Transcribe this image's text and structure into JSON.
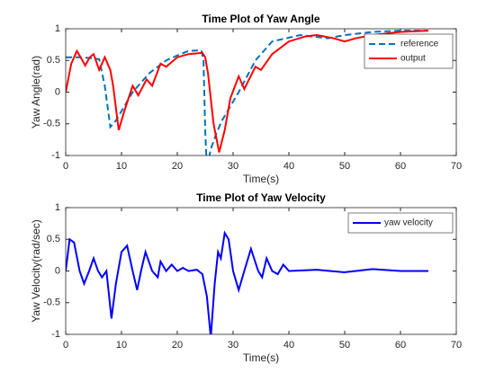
{
  "chart_data": [
    {
      "type": "line",
      "title": "Time Plot of Yaw Angle",
      "xlabel": "Time(s)",
      "ylabel": "Yaw Angle(rad)",
      "xlim": [
        0,
        70
      ],
      "xticks": [
        0,
        10,
        20,
        30,
        40,
        50,
        60,
        70
      ],
      "ylim": [
        -1,
        1
      ],
      "yticks": [
        -1,
        -0.5,
        0,
        0.5,
        1
      ],
      "legend": "northeast",
      "series": [
        {
          "name": "reference",
          "color": "#0072bd",
          "style": "dashed",
          "x": [
            0,
            3,
            6,
            7,
            8,
            9,
            10,
            12,
            15,
            18,
            20,
            22,
            24.3,
            24.7,
            25,
            25.3,
            26,
            27,
            28,
            29,
            31,
            34,
            37,
            42,
            47,
            50,
            55,
            60,
            65
          ],
          "values": [
            0.55,
            0.55,
            0.52,
            0.1,
            -0.55,
            -0.45,
            -0.3,
            0,
            0.3,
            0.5,
            0.58,
            0.65,
            0.66,
            0.5,
            -0.6,
            -1.2,
            -0.9,
            -0.65,
            -0.45,
            -0.3,
            0,
            0.5,
            0.8,
            0.9,
            0.85,
            0.9,
            0.95,
            0.97,
            0.97
          ]
        },
        {
          "name": "output",
          "color": "#ff0000",
          "style": "solid",
          "x": [
            0,
            1,
            2,
            3,
            3.5,
            4.3,
            5,
            6,
            7,
            8,
            8.5,
            9.5,
            10.5,
            12,
            13,
            14.5,
            15.5,
            17,
            18,
            20,
            22,
            24.5,
            25,
            25.5,
            26.5,
            27.5,
            28.5,
            29.5,
            31,
            32,
            34,
            35,
            37,
            38.5,
            40,
            43,
            45,
            48,
            50,
            52,
            55,
            60,
            65
          ],
          "values": [
            0,
            0.45,
            0.65,
            0.5,
            0.42,
            0.55,
            0.6,
            0.35,
            0.55,
            0.35,
            0.1,
            -0.6,
            -0.3,
            0.1,
            -0.05,
            0.2,
            0.1,
            0.45,
            0.4,
            0.55,
            0.6,
            0.62,
            0.55,
            0.3,
            -0.5,
            -0.95,
            -0.6,
            -0.1,
            0.25,
            0.05,
            0.4,
            0.35,
            0.6,
            0.7,
            0.8,
            0.88,
            0.9,
            0.85,
            0.8,
            0.85,
            0.9,
            0.95,
            0.97
          ]
        }
      ]
    },
    {
      "type": "line",
      "title": "Time Plot of Yaw Velocity",
      "xlabel": "Time(s)",
      "ylabel": "Yaw Velocity(rad/sec)",
      "xlim": [
        0,
        70
      ],
      "xticks": [
        0,
        10,
        20,
        30,
        40,
        50,
        60,
        70
      ],
      "ylim": [
        -1,
        1
      ],
      "yticks": [
        -1,
        -0.5,
        0,
        0.5,
        1
      ],
      "legend": "northeast",
      "series": [
        {
          "name": "yaw velocity",
          "color": "#0000ff",
          "style": "solid",
          "x": [
            0,
            0.7,
            1.5,
            2.5,
            3.3,
            4.2,
            5,
            5.8,
            6.5,
            7.3,
            8.2,
            9,
            10,
            11,
            12,
            12.8,
            13.5,
            14.3,
            15.5,
            16.5,
            17,
            18,
            19,
            20,
            21,
            22,
            23.5,
            24.5,
            25.3,
            26,
            26.7,
            27.3,
            27.8,
            28.5,
            29.2,
            30,
            31,
            32,
            33.2,
            34.5,
            35.2,
            36,
            37,
            38,
            39,
            40,
            45,
            50,
            55,
            60,
            65
          ],
          "values": [
            0,
            0.5,
            0.45,
            0,
            -0.2,
            0,
            0.2,
            0,
            -0.1,
            0,
            -0.75,
            -0.2,
            0.3,
            0.4,
            0,
            -0.3,
            0,
            0.3,
            0,
            -0.1,
            0.15,
            0,
            0.1,
            0,
            0.05,
            0,
            0.02,
            -0.05,
            -0.4,
            -1.05,
            -0.2,
            0.3,
            0.2,
            0.6,
            0.5,
            0,
            -0.3,
            0,
            0.35,
            0,
            -0.1,
            0.2,
            0,
            -0.05,
            0.1,
            0,
            0.02,
            -0.02,
            0.03,
            0,
            0
          ]
        }
      ]
    }
  ]
}
